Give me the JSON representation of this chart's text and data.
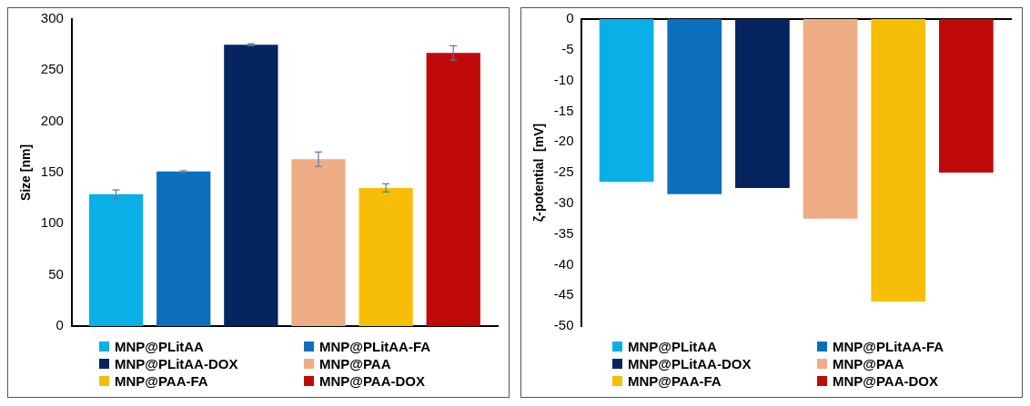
{
  "chart_data": [
    {
      "type": "bar",
      "ylabel": "Size [nm]",
      "categories": [
        null
      ],
      "ylim": [
        0,
        300
      ],
      "yticks": [
        0,
        50,
        100,
        150,
        200,
        250,
        300
      ],
      "grid": false,
      "legend": "bottom",
      "series": [
        {
          "name": "MNP@PLitAA",
          "color": "#0aafe8",
          "values": [
            129
          ],
          "errors": [
            4
          ]
        },
        {
          "name": "MNP@PLitAA-FA",
          "color": "#0b6fbe",
          "values": [
            151
          ],
          "errors": [
            1
          ]
        },
        {
          "name": "MNP@PLitAA-DOX",
          "color": "#062460",
          "values": [
            275
          ],
          "errors": [
            1
          ]
        },
        {
          "name": "MNP@PAA",
          "color": "#eead84",
          "values": [
            163
          ],
          "errors": [
            7
          ]
        },
        {
          "name": "MNP@PAA-FA",
          "color": "#f7be08",
          "values": [
            135
          ],
          "errors": [
            4
          ]
        },
        {
          "name": "MNP@PAA-DOX",
          "color": "#c00a0a",
          "values": [
            267
          ],
          "errors": [
            7
          ]
        }
      ]
    },
    {
      "type": "bar",
      "ylabel": "ζ-potential  [mV]",
      "categories": [
        null
      ],
      "ylim": [
        -50,
        0
      ],
      "yticks": [
        -50,
        -45,
        -40,
        -35,
        -30,
        -25,
        -20,
        -15,
        -10,
        -5,
        0
      ],
      "grid": false,
      "legend": "bottom",
      "series": [
        {
          "name": "MNP@PLitAA",
          "color": "#0aafe8",
          "values": [
            -26.5
          ]
        },
        {
          "name": "MNP@PLitAA-FA",
          "color": "#0b6fbe",
          "values": [
            -28.5
          ]
        },
        {
          "name": "MNP@PLitAA-DOX",
          "color": "#062460",
          "values": [
            -27.5
          ]
        },
        {
          "name": "MNP@PAA",
          "color": "#eead84",
          "values": [
            -32.5
          ]
        },
        {
          "name": "MNP@PAA-FA",
          "color": "#f7be08",
          "values": [
            -46
          ]
        },
        {
          "name": "MNP@PAA-DOX",
          "color": "#c00a0a",
          "values": [
            -25
          ]
        }
      ]
    }
  ]
}
